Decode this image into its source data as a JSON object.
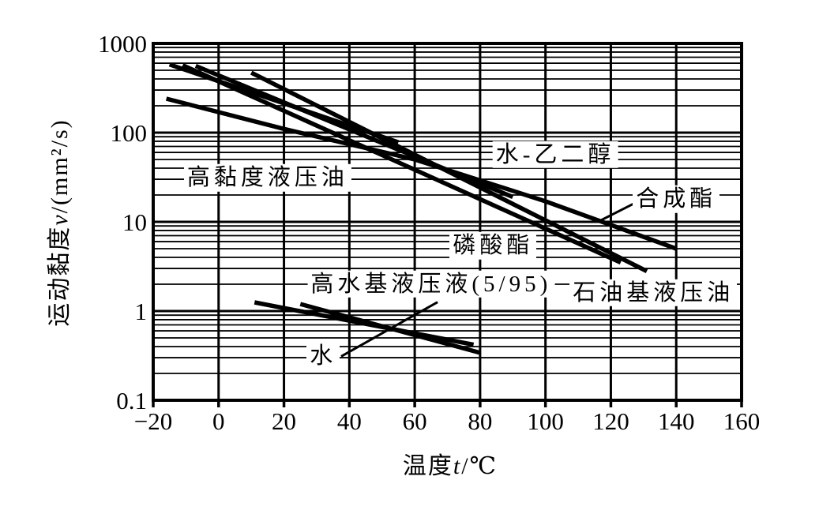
{
  "chart_data": {
    "type": "line",
    "title": "",
    "description": "Viscosity-temperature characteristics of hydraulic fluids, semi-log plot",
    "grid": true,
    "legend_position": "inline-labels",
    "x_axis": {
      "label_prefix": "温度",
      "label_var": "t",
      "label_suffix": "/℃",
      "min": -20,
      "max": 160,
      "ticks": [
        -20,
        0,
        20,
        40,
        60,
        80,
        100,
        120,
        140,
        160
      ],
      "tick_labels": [
        "−20",
        "0",
        "20",
        "40",
        "60",
        "80",
        "100",
        "120",
        "140",
        "160"
      ]
    },
    "y_axis": {
      "label_prefix": "运动黏度",
      "label_var": "v",
      "label_suffix": "/(mm²/s)",
      "scale": "log",
      "min": 0.1,
      "max": 1000,
      "ticks": [
        1000,
        100,
        10,
        1,
        0.1
      ],
      "tick_labels": [
        "1000",
        "100",
        "10",
        "1",
        "0.1"
      ],
      "minor_gridlines_per_decade": [
        2,
        3,
        4,
        5,
        6,
        7,
        8,
        9
      ]
    },
    "series": [
      {
        "name": "高黏度液压油",
        "slug": "high-viscosity-hydraulic-oil",
        "points": [
          [
            -15,
            580
          ],
          [
            55,
            78
          ]
        ],
        "label_anchor": [
          15,
          31
        ]
      },
      {
        "name": "石油基液压油",
        "slug": "petroleum-based-hydraulic-oil",
        "points": [
          [
            -11,
            570
          ],
          [
            123,
            3.5
          ]
        ],
        "label_anchor": [
          133,
          1.6
        ]
      },
      {
        "name": "磷酸酯",
        "slug": "phosphate-ester",
        "points": [
          [
            10,
            470
          ],
          [
            131,
            2.8
          ]
        ],
        "label_anchor": [
          84,
          5.4
        ]
      },
      {
        "name": "水-乙二醇",
        "slug": "water-glycol",
        "points": [
          [
            -7,
            560
          ],
          [
            90,
            19
          ]
        ],
        "label_anchor": [
          103,
          57
        ]
      },
      {
        "name": "合成酯",
        "slug": "synthetic-ester",
        "points": [
          [
            -16,
            240
          ],
          [
            20,
            110
          ],
          [
            60,
            50
          ],
          [
            100,
            17
          ],
          [
            140,
            5
          ]
        ],
        "label_anchor": [
          140,
          18
        ],
        "callout": [
          [
            127,
            16
          ],
          [
            116,
            10
          ]
        ]
      },
      {
        "name": "高水基液压液(5/95)",
        "slug": "high-water-based-hydraulic-fluid-5-95",
        "points": [
          [
            11,
            1.25
          ],
          [
            78,
            0.42
          ]
        ],
        "label_anchor": [
          65,
          2.0
        ],
        "callout": [
          [
            67,
            1.26
          ],
          [
            53,
            0.65
          ]
        ]
      },
      {
        "name": "水",
        "slug": "water",
        "points": [
          [
            25,
            1.2
          ],
          [
            80,
            0.34
          ]
        ],
        "label_anchor": [
          32,
          0.31
        ],
        "callout": [
          [
            37.5,
            0.31
          ],
          [
            53,
            0.65
          ]
        ]
      }
    ]
  }
}
